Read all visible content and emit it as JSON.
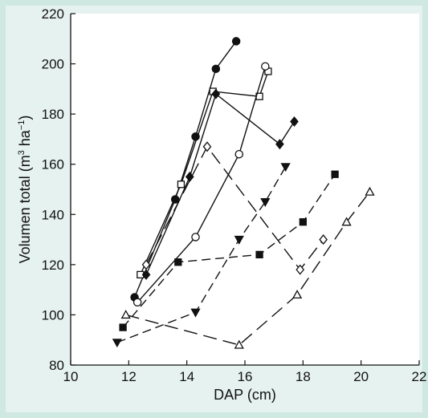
{
  "chart_data": {
    "type": "line",
    "title": "",
    "xlabel": "DAP (cm)",
    "ylabel_parts": {
      "pre": "Volumen total (m",
      "sup1": "3",
      "mid": " ha",
      "sup2": "−1",
      "post": ")"
    },
    "xlim": [
      10,
      22
    ],
    "ylim": [
      80,
      220
    ],
    "xticks": [
      10,
      12,
      14,
      16,
      18,
      20,
      22
    ],
    "yticks": [
      80,
      100,
      120,
      140,
      160,
      180,
      200,
      220
    ],
    "grid": false,
    "legend": "none",
    "colors": {
      "line": "#111111",
      "background": "#ffffff",
      "frame": "#cfe8e2",
      "panel": "#e6f2ef"
    },
    "series": [
      {
        "marker": "filled-circle",
        "dash": "solid",
        "x": [
          12.2,
          13.6,
          14.3,
          15.0,
          15.7
        ],
        "y": [
          107,
          146,
          171,
          198,
          209
        ]
      },
      {
        "marker": "open-square",
        "dash": "solid",
        "x": [
          12.4,
          13.8,
          14.9,
          16.5,
          16.8
        ],
        "y": [
          116,
          152,
          189,
          187,
          197
        ]
      },
      {
        "marker": "filled-diamond",
        "dash": "solid",
        "x": [
          12.6,
          14.1,
          15.0,
          17.2,
          17.7
        ],
        "y": [
          116,
          155,
          188,
          168,
          177
        ]
      },
      {
        "marker": "open-circle",
        "dash": "solid",
        "x": [
          12.3,
          14.3,
          15.8,
          16.7
        ],
        "y": [
          105,
          131,
          164,
          199
        ]
      },
      {
        "marker": "open-diamond",
        "dash": "long-dash",
        "x": [
          12.6,
          14.7,
          17.9,
          18.7
        ],
        "y": [
          120,
          167,
          118,
          130
        ]
      },
      {
        "marker": "filled-triangle-down",
        "dash": "dash",
        "x": [
          11.6,
          14.3,
          15.8,
          16.7,
          17.4
        ],
        "y": [
          89,
          101,
          130,
          145,
          159
        ]
      },
      {
        "marker": "filled-square",
        "dash": "dash",
        "x": [
          11.8,
          13.7,
          16.5,
          18.0,
          19.1
        ],
        "y": [
          95,
          121,
          124,
          137,
          156
        ]
      },
      {
        "marker": "open-triangle-up",
        "dash": "long-dash",
        "x": [
          11.9,
          15.8,
          17.8,
          19.5,
          20.3
        ],
        "y": [
          100,
          88,
          108,
          137,
          149
        ]
      }
    ]
  }
}
